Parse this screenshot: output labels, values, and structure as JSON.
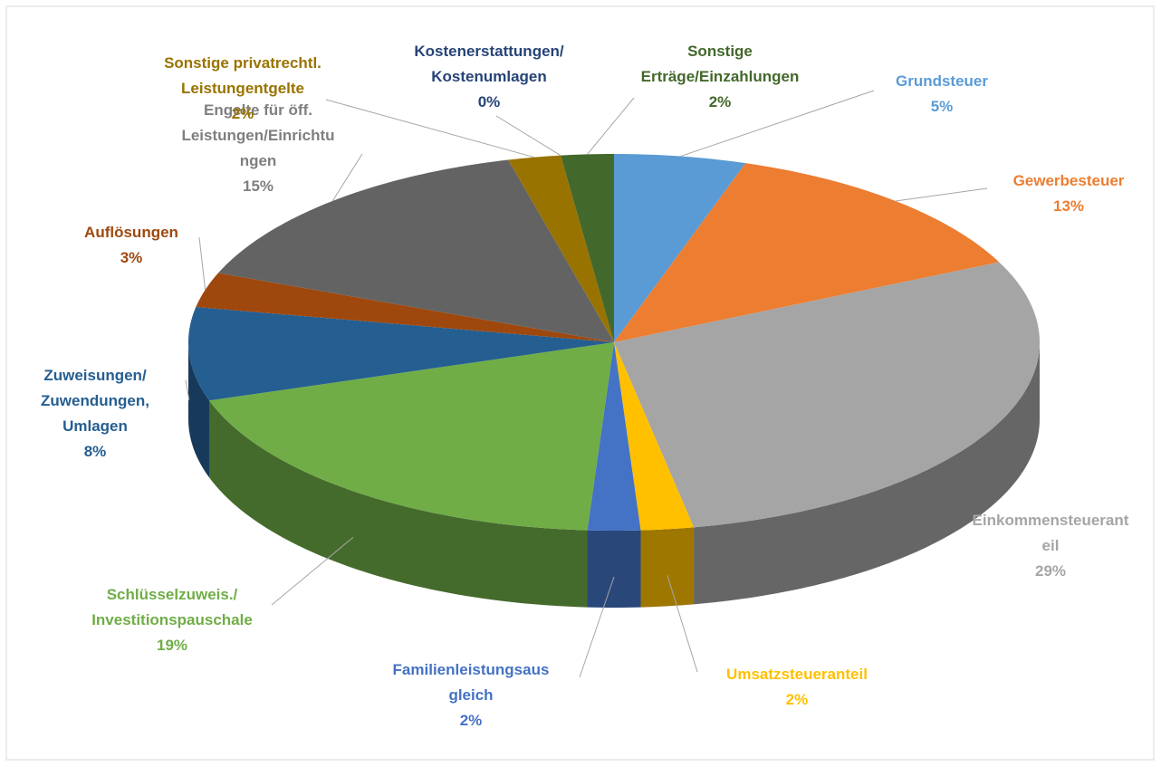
{
  "chart_data": {
    "type": "pie3d",
    "categories": [
      "Grundsteuer",
      "Gewerbesteuer",
      "Einkommensteueranteil",
      "Umsatzsteueranteil",
      "Familienleistungsausgleich",
      "Schlüsselzuweis./ Investitionspauschale",
      "Zuweisungen/ Zuwendungen, Umlagen",
      "Auflösungen",
      "Engelte für öff. Leistungen/Einrichtungen",
      "Sonstige privatrechtl. Leistungentgelte",
      "Kostenerstattungen/ Kostenumlagen",
      "Sonstige Erträge/Einzahlungen"
    ],
    "values": [
      5,
      13,
      29,
      2,
      2,
      19,
      8,
      3,
      15,
      2,
      0,
      2
    ],
    "value_labels": [
      "5%",
      "13%",
      "29%",
      "2%",
      "2%",
      "19%",
      "8%",
      "3%",
      "15%",
      "2%",
      "0%",
      "2%"
    ],
    "colors": [
      "#5b9bd5",
      "#ed7d31",
      "#a5a5a5",
      "#ffc000",
      "#4472c4",
      "#70ad47",
      "#255e91",
      "#9e480e",
      "#636363",
      "#997300",
      "#264478",
      "#43682b"
    ]
  }
}
